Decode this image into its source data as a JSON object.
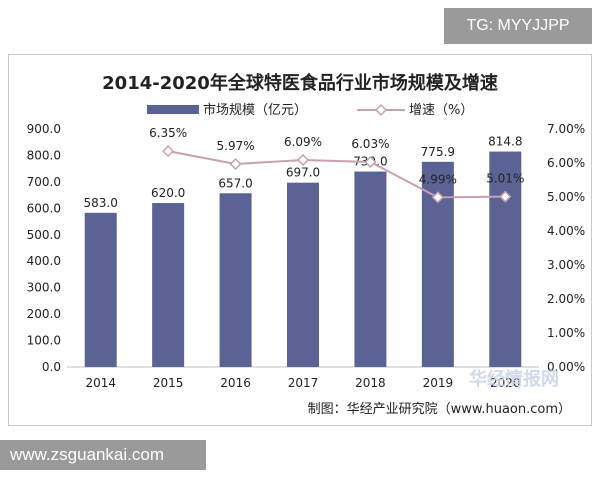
{
  "watermark_tag": "TG: MYYJJPP",
  "watermark_bottom": "www.zsguankai.com",
  "source_note": "制图：华经产业研究院（www.huaon.com）",
  "logo_watermark": "华经情报网",
  "chart_data": {
    "type": "bar",
    "title": "2014-2020年全球特医食品行业市场规模及增速",
    "categories": [
      "2014",
      "2015",
      "2016",
      "2017",
      "2018",
      "2019",
      "2020"
    ],
    "bar_labels": [
      "583.0",
      "620.0",
      "657.0",
      "697.0",
      "739.0",
      "775.9",
      "814.8"
    ],
    "line_labels": [
      "",
      "6.35%",
      "5.97%",
      "6.09%",
      "6.03%",
      "4.99%",
      "5.01%"
    ],
    "left_ticks": [
      "0.0",
      "100.0",
      "200.0",
      "300.0",
      "400.0",
      "500.0",
      "600.0",
      "700.0",
      "800.0",
      "900.0"
    ],
    "right_ticks": [
      "0.00%",
      "1.00%",
      "2.00%",
      "3.00%",
      "4.00%",
      "5.00%",
      "6.00%",
      "7.00%"
    ],
    "series": [
      {
        "name": "市场规模（亿元）",
        "type": "bar",
        "axis": "left",
        "values": [
          583.0,
          620.0,
          657.0,
          697.0,
          739.0,
          775.9,
          814.8
        ]
      },
      {
        "name": "增速（%）",
        "type": "line",
        "axis": "right",
        "values": [
          null,
          6.35,
          5.97,
          6.09,
          6.03,
          4.99,
          5.01
        ]
      }
    ],
    "ylim_left": [
      0,
      900
    ],
    "ylim_right": [
      0,
      7
    ],
    "legend_position": "top",
    "grid": false,
    "colors": {
      "bar": "#5a6394",
      "line": "#c8a0b1",
      "marker_stroke": "#c8a0b1"
    }
  }
}
